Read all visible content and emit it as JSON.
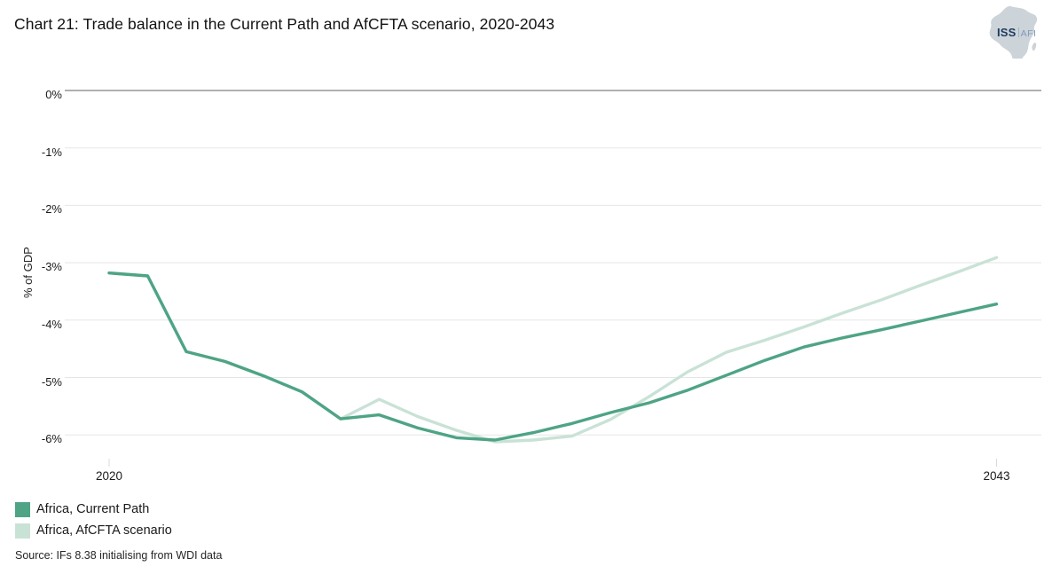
{
  "header": {
    "title": "Chart 21: Trade balance in the Current Path and AfCFTA scenario, 2020-2043"
  },
  "logo": {
    "primary": "ISS",
    "secondary": "AFI",
    "primary_color": "#1d3a5f",
    "secondary_color": "#7f9cba",
    "map_color": "#ccd3d9"
  },
  "chart_data": {
    "type": "line",
    "title": "Chart 21: Trade balance in the Current Path and AfCFTA scenario, 2020-2043",
    "xlabel": "",
    "ylabel": "% of GDP",
    "x": [
      2020,
      2021,
      2022,
      2023,
      2024,
      2025,
      2026,
      2027,
      2028,
      2029,
      2030,
      2031,
      2032,
      2033,
      2034,
      2035,
      2036,
      2037,
      2038,
      2039,
      2040,
      2041,
      2042,
      2043
    ],
    "x_axis_labels": [
      "2020",
      "2043"
    ],
    "y_ticks": [
      0,
      -1,
      -2,
      -3,
      -4,
      -5,
      -6
    ],
    "y_tick_labels": [
      "0%",
      "-1%",
      "-2%",
      "-3%",
      "-4%",
      "-5%",
      "-6%"
    ],
    "ylim": [
      -6.6,
      0.1
    ],
    "grid": "horizontal",
    "legend_position": "bottom-left",
    "series": [
      {
        "name": "Africa, Current Path",
        "color": "#4ea485",
        "values": [
          -3.18,
          -3.23,
          -4.55,
          -4.72,
          -4.97,
          -5.25,
          -5.72,
          -5.65,
          -5.88,
          -6.05,
          -6.09,
          -5.96,
          -5.8,
          -5.61,
          -5.44,
          -5.22,
          -4.96,
          -4.7,
          -4.47,
          -4.31,
          -4.17,
          -4.02,
          -3.87,
          -3.72
        ]
      },
      {
        "name": "Africa, AfCFTA scenario",
        "color": "#c9e2d6",
        "values": [
          -3.18,
          -3.23,
          -4.55,
          -4.72,
          -4.97,
          -5.25,
          -5.72,
          -5.38,
          -5.68,
          -5.92,
          -6.12,
          -6.09,
          -6.02,
          -5.73,
          -5.33,
          -4.9,
          -4.56,
          -4.35,
          -4.12,
          -3.88,
          -3.65,
          -3.4,
          -3.16,
          -2.91
        ]
      }
    ]
  },
  "axis_colors": {
    "zero_line": "#808080",
    "grid_line": "#e5e5e5",
    "tick_mark": "#d9d9d9"
  },
  "source": {
    "text": "Source: IFs 8.38 initialising from WDI data"
  }
}
